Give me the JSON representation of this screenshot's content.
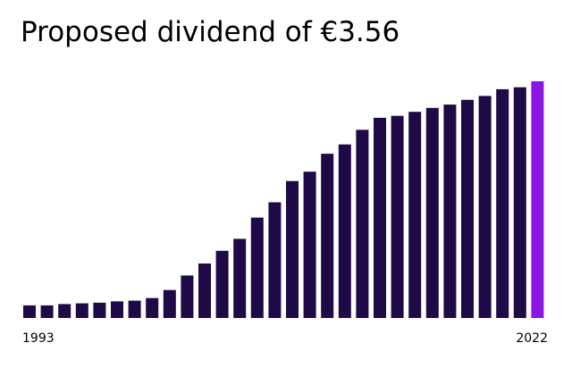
{
  "chart_data": {
    "type": "bar",
    "title": "Proposed dividend of €3.56",
    "x_start_label": "1993",
    "x_end_label": "2022",
    "categories": [
      "1993",
      "1994",
      "1995",
      "1996",
      "1997",
      "1998",
      "1999",
      "2000",
      "2001",
      "2002",
      "2003",
      "2004",
      "2005",
      "2006",
      "2007",
      "2008",
      "2009",
      "2010",
      "2011",
      "2012",
      "2013",
      "2014",
      "2015",
      "2016",
      "2017",
      "2018",
      "2019",
      "2020",
      "2021",
      "2022"
    ],
    "values": [
      0.19,
      0.19,
      0.21,
      0.22,
      0.23,
      0.25,
      0.26,
      0.3,
      0.42,
      0.64,
      0.82,
      1.01,
      1.19,
      1.51,
      1.74,
      2.06,
      2.2,
      2.47,
      2.61,
      2.83,
      3.01,
      3.04,
      3.1,
      3.16,
      3.21,
      3.28,
      3.34,
      3.44,
      3.47,
      3.56
    ],
    "colors": {
      "bar": "#1e0a47",
      "highlight": "#8c14e6",
      "text": "#000000"
    },
    "highlight_last": true,
    "ylim": [
      0,
      3.56
    ],
    "grid": false,
    "legend": "none"
  }
}
